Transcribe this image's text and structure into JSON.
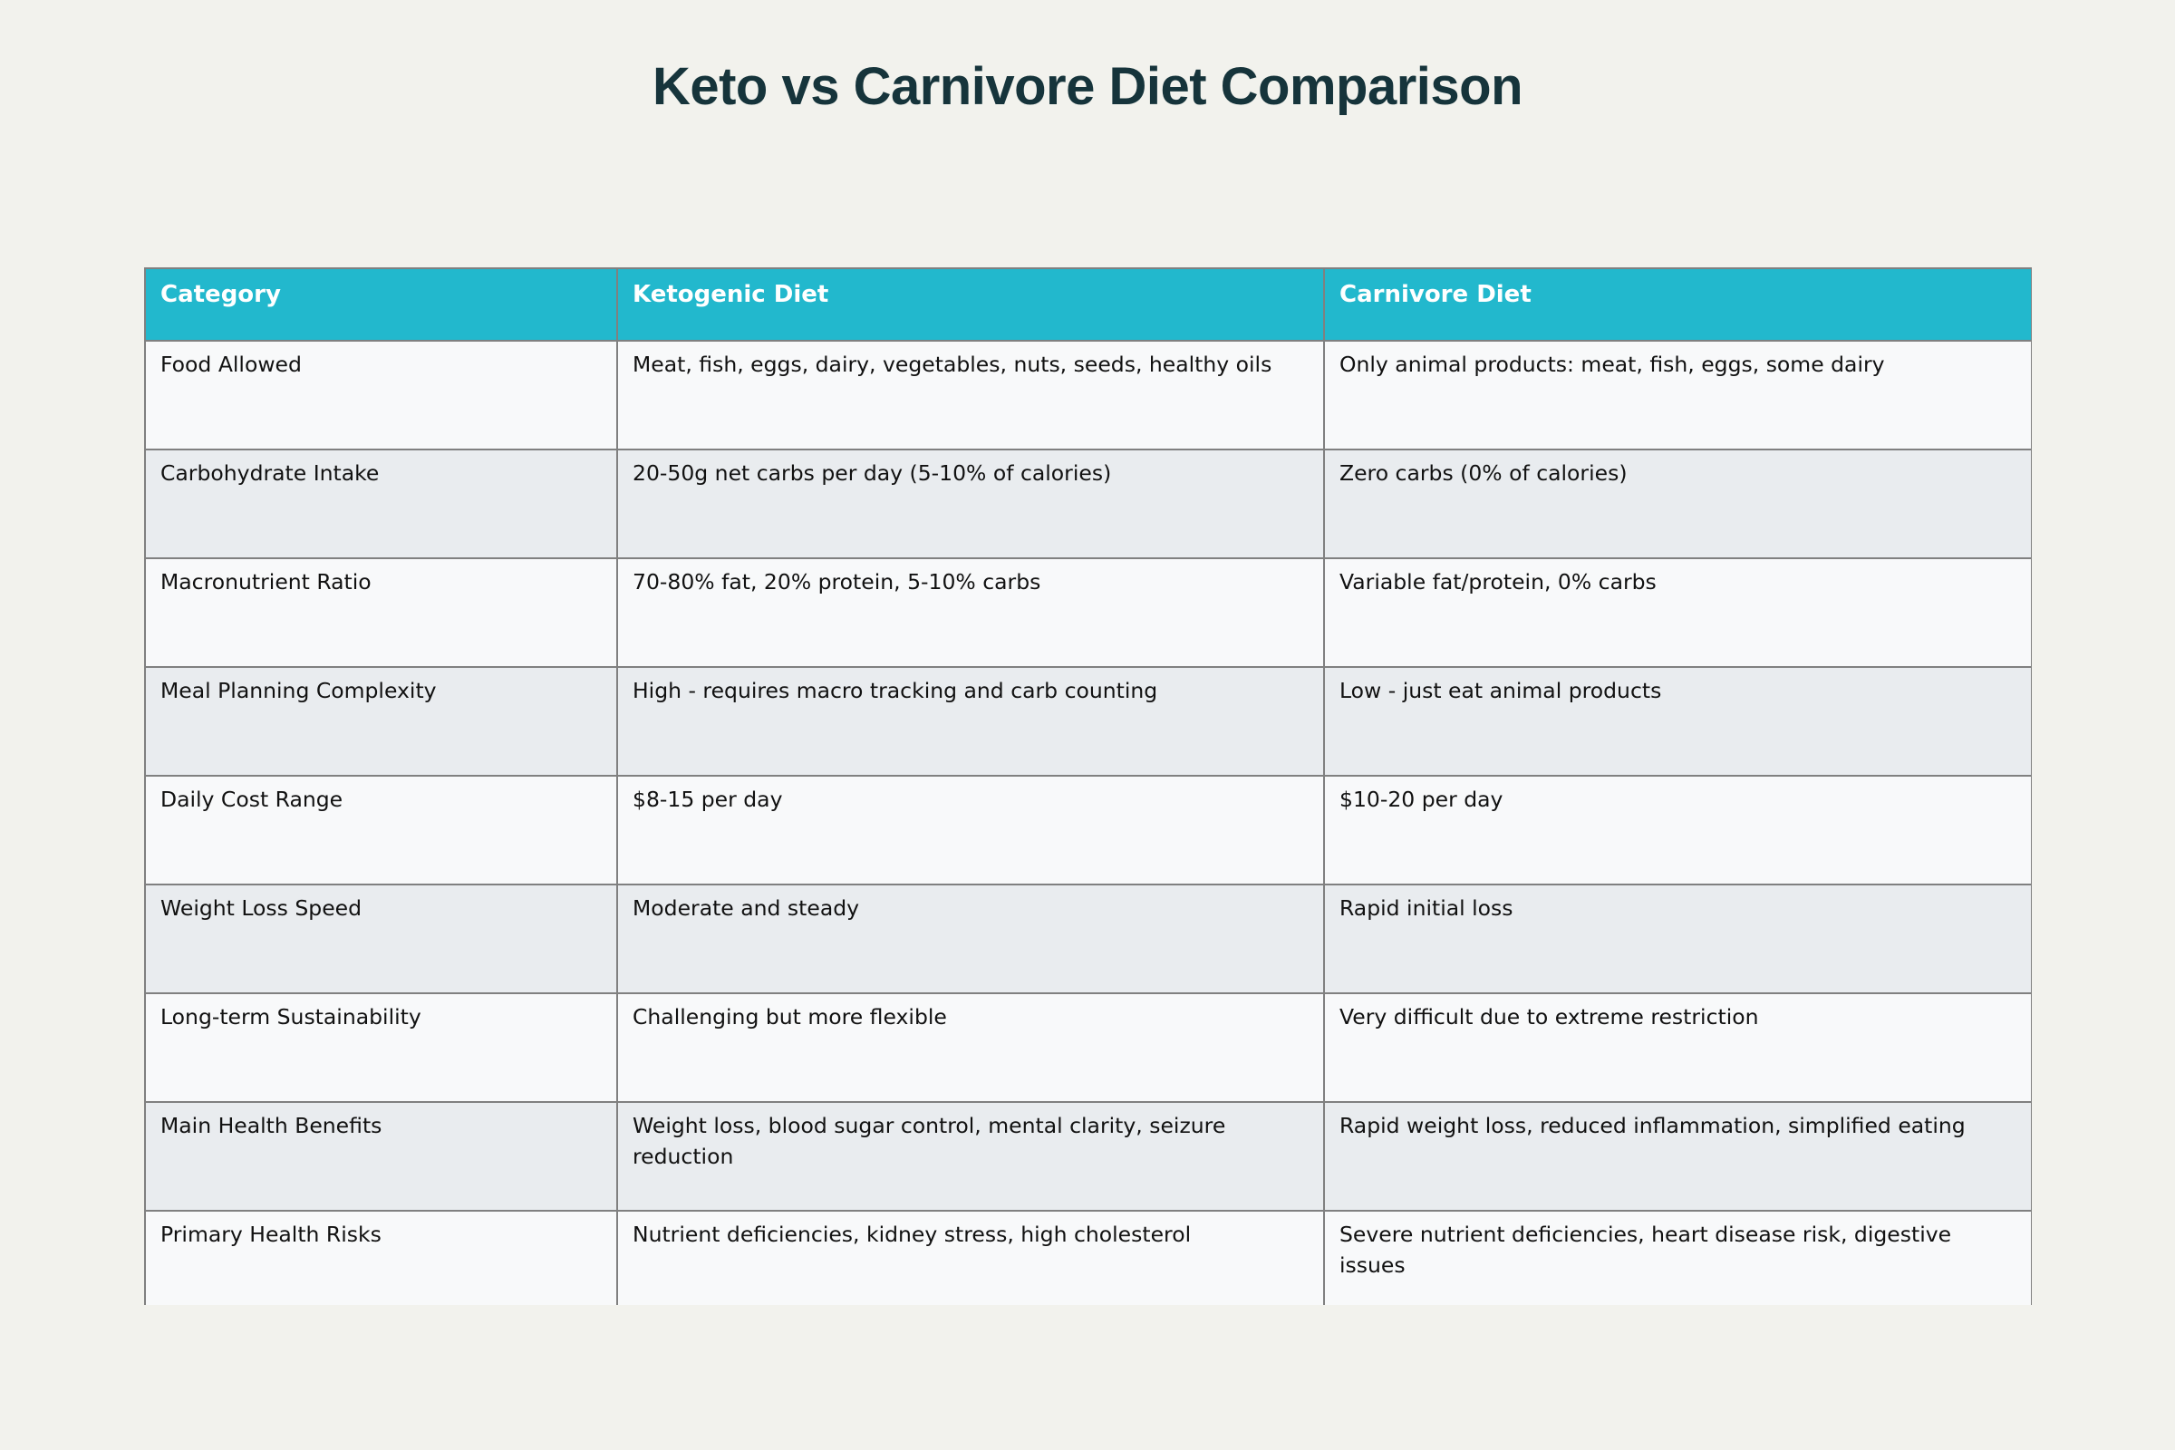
{
  "title": "Keto vs Carnivore Diet Comparison",
  "colors": {
    "header_bg": "#22b8cd",
    "title": "#16343b",
    "row_odd": "#f8f9fa",
    "row_even": "#e9ecef",
    "border": "#808080",
    "page_bg": "#f2f2ed"
  },
  "table": {
    "headers": [
      "Category",
      "Ketogenic Diet",
      "Carnivore Diet"
    ],
    "rows": [
      [
        "Food Allowed",
        "Meat, fish, eggs, dairy, vegetables, nuts, seeds, healthy oils",
        "Only animal products: meat, fish, eggs, some dairy"
      ],
      [
        "Carbohydrate Intake",
        "20-50g net carbs per day (5-10% of calories)",
        "Zero carbs (0% of calories)"
      ],
      [
        "Macronutrient Ratio",
        "70-80% fat, 20% protein, 5-10% carbs",
        "Variable fat/protein, 0% carbs"
      ],
      [
        "Meal Planning Complexity",
        "High - requires macro tracking and carb counting",
        "Low - just eat animal products"
      ],
      [
        "Daily Cost Range",
        "$8-15 per day",
        "$10-20 per day"
      ],
      [
        "Weight Loss Speed",
        "Moderate and steady",
        "Rapid initial loss"
      ],
      [
        "Long-term Sustainability",
        "Challenging but more flexible",
        "Very difficult due to extreme restriction"
      ],
      [
        "Main Health Benefits",
        "Weight loss, blood sugar control, mental clarity, seizure reduction",
        "Rapid weight loss, reduced inflammation, simplified eating"
      ],
      [
        "Primary Health Risks",
        "Nutrient deficiencies, kidney stress, high cholesterol",
        "Severe nutrient deficiencies, heart disease risk, digestive issues"
      ]
    ]
  }
}
